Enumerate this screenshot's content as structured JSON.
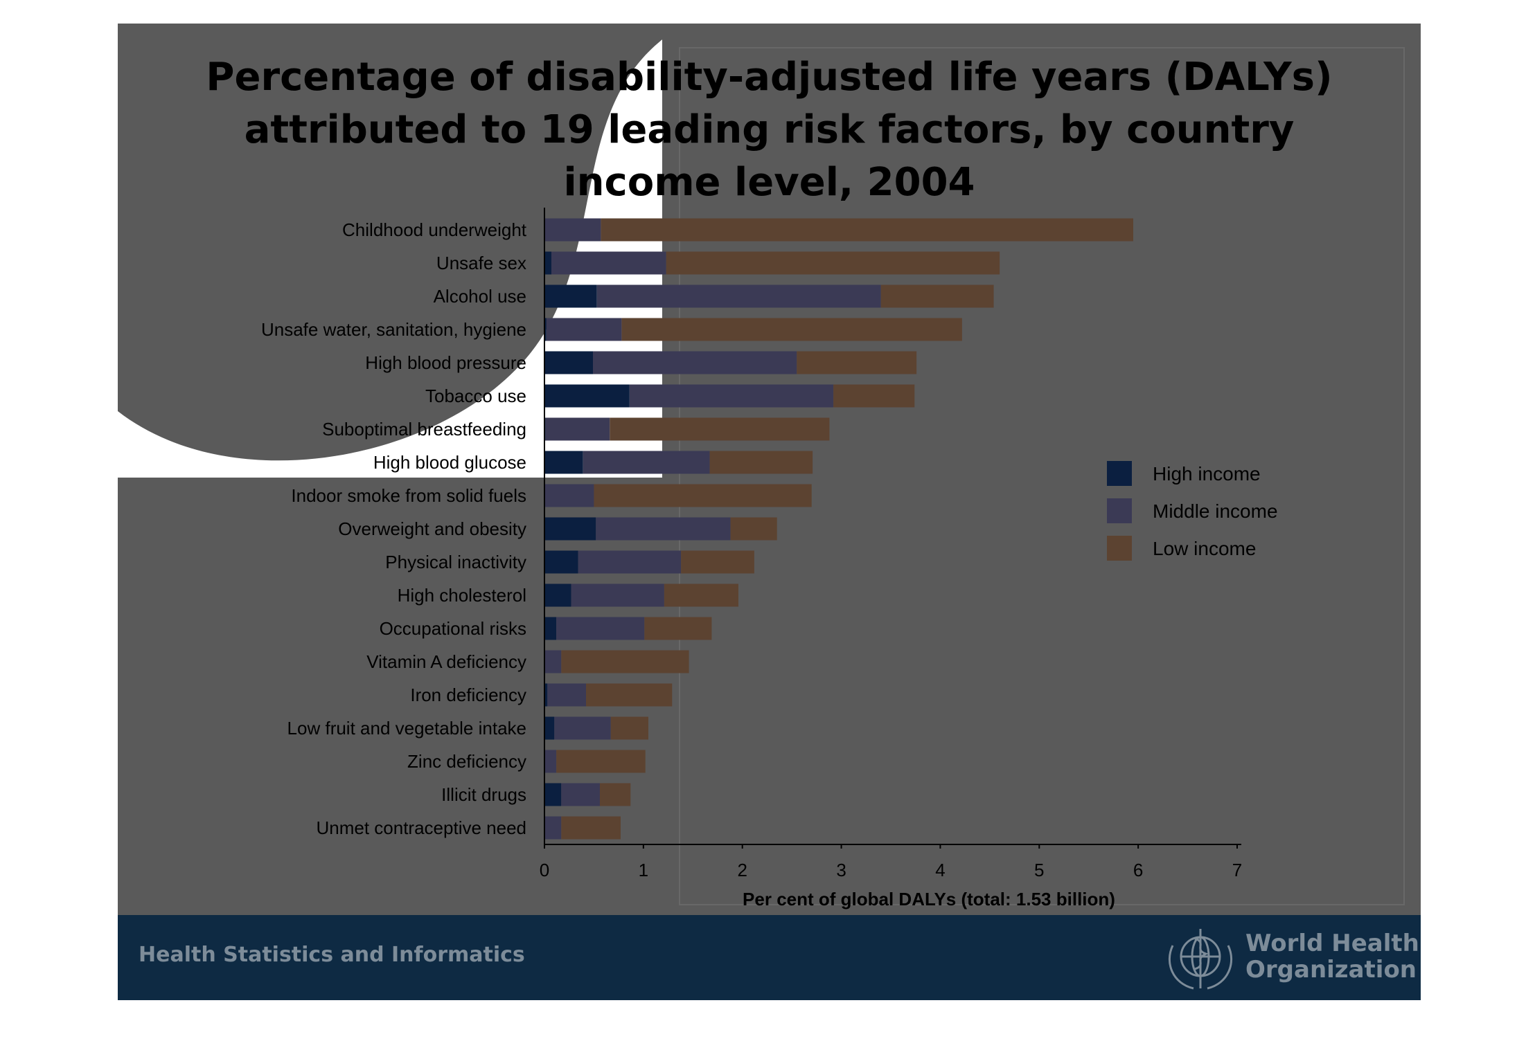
{
  "slide": {
    "footer_left": "Health Statistics and Informatics",
    "org_name_line1": "World Health",
    "org_name_line2": "Organization"
  },
  "chart_data": {
    "type": "bar",
    "orientation": "horizontal",
    "stacked": true,
    "title_lines": [
      "Percentage of disability-adjusted life years (DALYs)",
      "attributed to 19 leading risk factors, by country",
      "income level, 2004"
    ],
    "xlabel": "Per cent of global DALYs (total: 1.53 billion)",
    "ylabel": "",
    "xlim": [
      0,
      7
    ],
    "xticks": [
      "0",
      "1",
      "2",
      "3",
      "4",
      "5",
      "6",
      "7"
    ],
    "legend_position": "right",
    "colors": {
      "High income": "#0b1f40",
      "Middle income": "#3b3a55",
      "Low income": "#5c4331"
    },
    "categories": [
      "Childhood underweight",
      "Unsafe sex",
      "Alcohol use",
      "Unsafe water, sanitation, hygiene",
      "High blood pressure",
      "Tobacco use",
      "Suboptimal breastfeeding",
      "High blood glucose",
      "Indoor smoke from solid fuels",
      "Overweight and obesity",
      "Physical inactivity",
      "High cholesterol",
      "Occupational risks",
      "Vitamin A deficiency",
      "Iron deficiency",
      "Low fruit and vegetable intake",
      "Zinc deficiency",
      "Illicit drugs",
      "Unmet contraceptive need"
    ],
    "series": [
      {
        "name": "High income",
        "values": [
          0.0,
          0.07,
          0.53,
          0.02,
          0.49,
          0.86,
          0.01,
          0.39,
          0.0,
          0.52,
          0.34,
          0.27,
          0.12,
          0.0,
          0.03,
          0.1,
          0.0,
          0.17,
          0.0
        ]
      },
      {
        "name": "Middle income",
        "values": [
          0.57,
          1.16,
          2.87,
          0.76,
          2.06,
          2.06,
          0.65,
          1.28,
          0.5,
          1.36,
          1.04,
          0.94,
          0.89,
          0.17,
          0.39,
          0.57,
          0.12,
          0.39,
          0.17
        ]
      },
      {
        "name": "Low income",
        "values": [
          5.38,
          3.37,
          1.14,
          3.44,
          1.21,
          0.82,
          2.22,
          1.04,
          2.2,
          0.47,
          0.74,
          0.75,
          0.68,
          1.29,
          0.87,
          0.38,
          0.9,
          0.31,
          0.6
        ]
      }
    ]
  }
}
